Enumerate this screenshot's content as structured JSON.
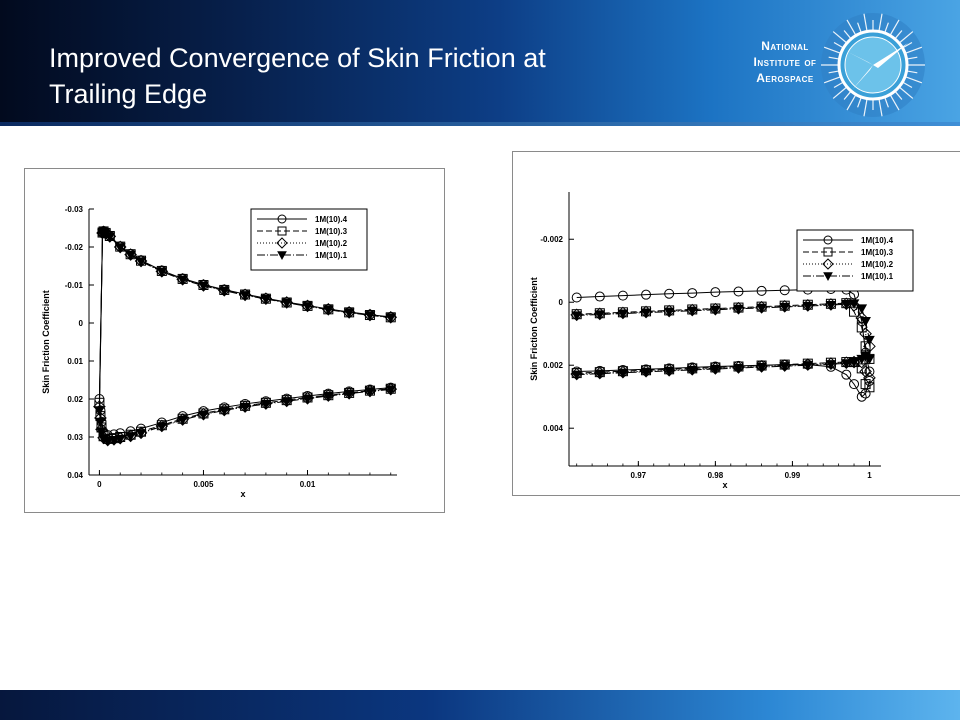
{
  "slide": {
    "title_line1": "Improved Convergence of Skin Friction at",
    "title_line2": "Trailing Edge"
  },
  "logo": {
    "line1": "National",
    "line2": "Institute of",
    "line3": "Aerospace",
    "icon": "compass-star-icon"
  },
  "colors": {
    "header_dark": "#020a1e",
    "header_light": "#4aa4e4",
    "line": "#000000"
  },
  "chart_data": [
    {
      "type": "line",
      "xlabel": "x",
      "ylabel": "Skin Friction Coefficient",
      "xlim": [
        -0.0005,
        0.0143
      ],
      "ylim": [
        0.04,
        -0.03
      ],
      "y_inverted": true,
      "xticks": [
        0,
        0.005,
        0.01
      ],
      "xtick_labels": [
        "0",
        "0.005",
        "0.01"
      ],
      "yticks": [
        -0.03,
        -0.02,
        -0.01,
        0,
        0.01,
        0.02,
        0.03,
        0.04
      ],
      "ytick_labels": [
        "-0.03",
        "-0.02",
        "-0.01",
        "0",
        "0.01",
        "0.02",
        "0.03",
        "0.04"
      ],
      "legend_position": "top-right",
      "series": [
        {
          "name": "1M(10).4",
          "marker": "circle",
          "dash": "",
          "upper": {
            "x": [
              0.00015,
              0.0002,
              0.0003,
              0.0005,
              0.001,
              0.0015,
              0.002,
              0.003,
              0.004,
              0.005,
              0.006,
              0.007,
              0.008,
              0.009,
              0.01,
              0.011,
              0.012,
              0.013,
              0.014
            ],
            "y": [
              -0.024,
              -0.0242,
              -0.0238,
              -0.023,
              -0.0202,
              -0.0182,
              -0.0165,
              -0.0138,
              -0.0117,
              -0.0101,
              -0.0088,
              -0.0076,
              -0.0065,
              -0.0055,
              -0.0046,
              -0.0037,
              -0.0029,
              -0.0022,
              -0.0016
            ]
          },
          "lower": {
            "x": [
              0.0,
              5e-05,
              0.0001,
              0.0002,
              0.0004,
              0.0007,
              0.001,
              0.0015,
              0.002,
              0.003,
              0.004,
              0.005,
              0.006,
              0.007,
              0.008,
              0.009,
              0.01,
              0.011,
              0.012,
              0.013,
              0.014
            ],
            "y": [
              0.02,
              0.023,
              0.026,
              0.0288,
              0.0295,
              0.0293,
              0.029,
              0.0285,
              0.0278,
              0.0262,
              0.0245,
              0.0232,
              0.0222,
              0.0213,
              0.0206,
              0.0199,
              0.0192,
              0.0186,
              0.018,
              0.0175,
              0.017
            ]
          }
        },
        {
          "name": "1M(10).3",
          "marker": "square",
          "dash": "6,3",
          "upper": {
            "x": [
              0.00015,
              0.0002,
              0.0003,
              0.0005,
              0.001,
              0.0015,
              0.002,
              0.003,
              0.004,
              0.005,
              0.006,
              0.007,
              0.008,
              0.009,
              0.01,
              0.011,
              0.012,
              0.013,
              0.014
            ],
            "y": [
              -0.0238,
              -0.0241,
              -0.0237,
              -0.0229,
              -0.0201,
              -0.0181,
              -0.0164,
              -0.0137,
              -0.0116,
              -0.01,
              -0.0087,
              -0.0075,
              -0.0064,
              -0.0054,
              -0.0045,
              -0.0036,
              -0.0028,
              -0.0021,
              -0.0015
            ]
          },
          "lower": {
            "x": [
              0.0,
              5e-05,
              0.0001,
              0.0002,
              0.0004,
              0.0007,
              0.001,
              0.0015,
              0.002,
              0.003,
              0.004,
              0.005,
              0.006,
              0.007,
              0.008,
              0.009,
              0.01,
              0.011,
              0.012,
              0.013,
              0.014
            ],
            "y": [
              0.021,
              0.0245,
              0.0275,
              0.0298,
              0.0305,
              0.0303,
              0.03,
              0.0294,
              0.0286,
              0.0269,
              0.0252,
              0.0238,
              0.0227,
              0.0218,
              0.021,
              0.0203,
              0.0196,
              0.019,
              0.0184,
              0.0178,
              0.0173
            ]
          }
        },
        {
          "name": "1M(10).2",
          "marker": "diamond",
          "dash": "1,2",
          "upper": {
            "x": [
              0.00015,
              0.0002,
              0.0003,
              0.0005,
              0.001,
              0.0015,
              0.002,
              0.003,
              0.004,
              0.005,
              0.006,
              0.007,
              0.008,
              0.009,
              0.01,
              0.011,
              0.012,
              0.013,
              0.014
            ],
            "y": [
              -0.0237,
              -0.024,
              -0.0236,
              -0.0228,
              -0.02,
              -0.018,
              -0.0163,
              -0.0136,
              -0.0115,
              -0.0099,
              -0.0086,
              -0.0074,
              -0.0064,
              -0.0054,
              -0.0045,
              -0.0036,
              -0.0028,
              -0.0021,
              -0.0015
            ]
          },
          "lower": {
            "x": [
              0.0,
              5e-05,
              0.0001,
              0.0002,
              0.0004,
              0.0007,
              0.001,
              0.0015,
              0.002,
              0.003,
              0.004,
              0.005,
              0.006,
              0.007,
              0.008,
              0.009,
              0.01,
              0.011,
              0.012,
              0.013,
              0.014
            ],
            "y": [
              0.022,
              0.025,
              0.028,
              0.0302,
              0.0308,
              0.0306,
              0.0303,
              0.0297,
              0.0289,
              0.0271,
              0.0254,
              0.024,
              0.0229,
              0.022,
              0.0212,
              0.0205,
              0.0198,
              0.0191,
              0.0185,
              0.0179,
              0.0174
            ]
          }
        },
        {
          "name": "1M(10).1",
          "marker": "triangle-down",
          "dash": "8,2,1,2",
          "upper": {
            "x": [
              0.00015,
              0.0002,
              0.0003,
              0.0005,
              0.001,
              0.0015,
              0.002,
              0.003,
              0.004,
              0.005,
              0.006,
              0.007,
              0.008,
              0.009,
              0.01,
              0.011,
              0.012,
              0.013,
              0.014
            ],
            "y": [
              -0.0236,
              -0.0239,
              -0.0235,
              -0.0227,
              -0.0199,
              -0.0179,
              -0.0162,
              -0.0135,
              -0.0114,
              -0.0098,
              -0.0085,
              -0.0073,
              -0.0063,
              -0.0053,
              -0.0044,
              -0.0035,
              -0.0027,
              -0.002,
              -0.0014
            ]
          },
          "lower": {
            "x": [
              0.0,
              5e-05,
              0.0001,
              0.0002,
              0.0004,
              0.0007,
              0.001,
              0.0015,
              0.002,
              0.003,
              0.004,
              0.005,
              0.006,
              0.007,
              0.008,
              0.009,
              0.01,
              0.011,
              0.012,
              0.013,
              0.014
            ],
            "y": [
              0.023,
              0.026,
              0.0285,
              0.0305,
              0.031,
              0.0308,
              0.0305,
              0.0298,
              0.029,
              0.0272,
              0.0255,
              0.0241,
              0.023,
              0.0221,
              0.0213,
              0.0206,
              0.0199,
              0.0192,
              0.0186,
              0.018,
              0.0175
            ]
          }
        }
      ]
    },
    {
      "type": "line",
      "xlabel": "x",
      "ylabel": "Skin Friction Coefficient",
      "xlim": [
        0.961,
        1.0015
      ],
      "ylim": [
        0.0052,
        -0.0035
      ],
      "y_inverted": true,
      "xticks": [
        0.97,
        0.98,
        0.99,
        1
      ],
      "xtick_labels": [
        "0.97",
        "0.98",
        "0.99",
        "1"
      ],
      "yticks": [
        -0.002,
        0,
        0.002,
        0.004
      ],
      "ytick_labels": [
        "-0.002",
        "0",
        "0.002",
        "0.004"
      ],
      "legend_position": "top-right",
      "series": [
        {
          "name": "1M(10).4",
          "marker": "circle",
          "dash": "",
          "upper": {
            "x": [
              0.962,
              0.965,
              0.968,
              0.971,
              0.974,
              0.977,
              0.98,
              0.983,
              0.986,
              0.989,
              0.992,
              0.995,
              0.997,
              0.998,
              0.999,
              0.9995,
              1.0
            ],
            "y": [
              -0.00015,
              -0.00018,
              -0.00021,
              -0.00024,
              -0.00027,
              -0.00029,
              -0.00032,
              -0.00034,
              -0.00036,
              -0.00038,
              -0.0004,
              -0.00042,
              -0.0004,
              -0.00025,
              0.0006,
              0.0016,
              0.0022
            ]
          },
          "lower": {
            "x": [
              0.962,
              0.965,
              0.968,
              0.971,
              0.974,
              0.977,
              0.98,
              0.983,
              0.986,
              0.989,
              0.992,
              0.995,
              0.997,
              0.998,
              0.999,
              0.9995,
              1.0
            ],
            "y": [
              0.0022,
              0.00218,
              0.00215,
              0.00213,
              0.0021,
              0.00207,
              0.00204,
              0.00202,
              0.002,
              0.00198,
              0.00198,
              0.00205,
              0.0023,
              0.0026,
              0.003,
              0.0029,
              0.0025
            ]
          }
        },
        {
          "name": "1M(10).3",
          "marker": "square",
          "dash": "6,3",
          "upper": {
            "x": [
              0.962,
              0.965,
              0.968,
              0.971,
              0.974,
              0.977,
              0.98,
              0.983,
              0.986,
              0.989,
              0.992,
              0.995,
              0.997,
              0.998,
              0.999,
              0.9995,
              1.0
            ],
            "y": [
              0.00038,
              0.00035,
              0.00032,
              0.00029,
              0.00026,
              0.00023,
              0.0002,
              0.00017,
              0.00014,
              0.00011,
              8e-05,
              5e-05,
              3e-05,
              0.0003,
              0.0008,
              0.0014,
              0.0018
            ]
          },
          "lower": {
            "x": [
              0.962,
              0.965,
              0.968,
              0.971,
              0.974,
              0.977,
              0.98,
              0.983,
              0.986,
              0.989,
              0.992,
              0.995,
              0.997,
              0.998,
              0.999,
              0.9995,
              1.0
            ],
            "y": [
              0.00225,
              0.00222,
              0.00219,
              0.00216,
              0.00213,
              0.0021,
              0.00207,
              0.00204,
              0.00201,
              0.00198,
              0.00195,
              0.00192,
              0.0019,
              0.0019,
              0.0021,
              0.0026,
              0.0027
            ]
          }
        },
        {
          "name": "1M(10).2",
          "marker": "diamond",
          "dash": "1,2",
          "upper": {
            "x": [
              0.962,
              0.965,
              0.968,
              0.971,
              0.974,
              0.977,
              0.98,
              0.983,
              0.986,
              0.989,
              0.992,
              0.995,
              0.997,
              0.998,
              0.999,
              0.9995,
              1.0
            ],
            "y": [
              0.0004,
              0.00037,
              0.00034,
              0.00031,
              0.00028,
              0.00025,
              0.00022,
              0.00019,
              0.00016,
              0.00013,
              0.0001,
              7e-05,
              5e-05,
              0.0001,
              0.0005,
              0.001,
              0.0014
            ]
          },
          "lower": {
            "x": [
              0.962,
              0.965,
              0.968,
              0.971,
              0.974,
              0.977,
              0.98,
              0.983,
              0.986,
              0.989,
              0.992,
              0.995,
              0.997,
              0.998,
              0.999,
              0.9995,
              1.0
            ],
            "y": [
              0.00228,
              0.00225,
              0.00222,
              0.00219,
              0.00216,
              0.00213,
              0.0021,
              0.00207,
              0.00204,
              0.00201,
              0.00198,
              0.00195,
              0.00192,
              0.0019,
              0.0019,
              0.0022,
              0.0024
            ]
          }
        },
        {
          "name": "1M(10).1",
          "marker": "triangle-down",
          "dash": "8,2,1,2",
          "upper": {
            "x": [
              0.962,
              0.965,
              0.968,
              0.971,
              0.974,
              0.977,
              0.98,
              0.983,
              0.986,
              0.989,
              0.992,
              0.995,
              0.997,
              0.998,
              0.999,
              0.9995,
              1.0
            ],
            "y": [
              0.00042,
              0.00039,
              0.00036,
              0.00033,
              0.0003,
              0.00027,
              0.00024,
              0.00021,
              0.00018,
              0.00015,
              0.00012,
              9e-05,
              6e-05,
              4e-05,
              0.0002,
              0.0006,
              0.0012
            ]
          },
          "lower": {
            "x": [
              0.962,
              0.965,
              0.968,
              0.971,
              0.974,
              0.977,
              0.98,
              0.983,
              0.986,
              0.989,
              0.992,
              0.995,
              0.997,
              0.998,
              0.999,
              0.9995,
              1.0
            ],
            "y": [
              0.0023,
              0.00227,
              0.00224,
              0.00221,
              0.00218,
              0.00215,
              0.00212,
              0.00209,
              0.00206,
              0.00203,
              0.002,
              0.00197,
              0.00194,
              0.0019,
              0.0018,
              0.0017,
              0.0018
            ]
          }
        }
      ]
    }
  ]
}
